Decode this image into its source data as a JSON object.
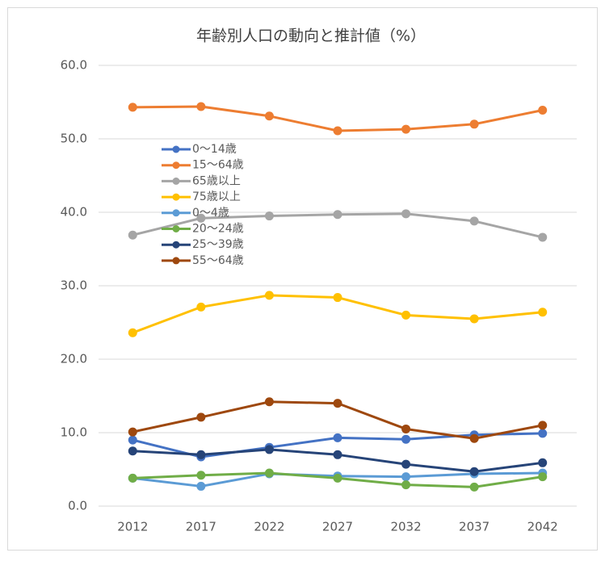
{
  "chart_data": {
    "type": "line",
    "title": "年齢別人口の動向と推計値（%）",
    "categories": [
      "2012",
      "2017",
      "2022",
      "2027",
      "2032",
      "2037",
      "2042"
    ],
    "series": [
      {
        "name": "0〜14歳",
        "color": "#4472c4",
        "values": [
          9.0,
          6.7,
          8.0,
          9.3,
          9.1,
          9.7,
          9.9
        ]
      },
      {
        "name": "15〜64歳",
        "color": "#ed7d31",
        "values": [
          54.3,
          54.4,
          53.1,
          51.1,
          51.3,
          52.0,
          53.9
        ]
      },
      {
        "name": "65歳以上",
        "color": "#a5a5a5",
        "values": [
          36.9,
          39.2,
          39.5,
          39.7,
          39.8,
          38.8,
          36.6
        ]
      },
      {
        "name": "75歳以上",
        "color": "#ffc000",
        "values": [
          23.6,
          27.1,
          28.7,
          28.4,
          26.0,
          25.5,
          26.4
        ]
      },
      {
        "name": "0〜4歳",
        "color": "#5b9bd5",
        "values": [
          3.8,
          2.7,
          4.4,
          4.1,
          4.0,
          4.4,
          4.5
        ]
      },
      {
        "name": "20〜24歳",
        "color": "#70ad47",
        "values": [
          3.8,
          4.2,
          4.5,
          3.8,
          2.9,
          2.6,
          4.0
        ]
      },
      {
        "name": "25〜39歳",
        "color": "#264478",
        "values": [
          7.5,
          7.0,
          7.7,
          7.0,
          5.7,
          4.7,
          5.9
        ]
      },
      {
        "name": "55〜64歳",
        "color": "#9e480e",
        "values": [
          10.1,
          12.1,
          14.2,
          14.0,
          10.5,
          9.2,
          11.0
        ]
      }
    ],
    "ylim": [
      0,
      60
    ],
    "yticks": [
      {
        "value": 0,
        "label": "0.0"
      },
      {
        "value": 10,
        "label": "10.0"
      },
      {
        "value": 20,
        "label": "20.0"
      },
      {
        "value": 30,
        "label": "30.0"
      },
      {
        "value": 40,
        "label": "40.0"
      },
      {
        "value": 50,
        "label": "50.0"
      },
      {
        "value": 60,
        "label": "60.0"
      }
    ],
    "grid": true
  }
}
